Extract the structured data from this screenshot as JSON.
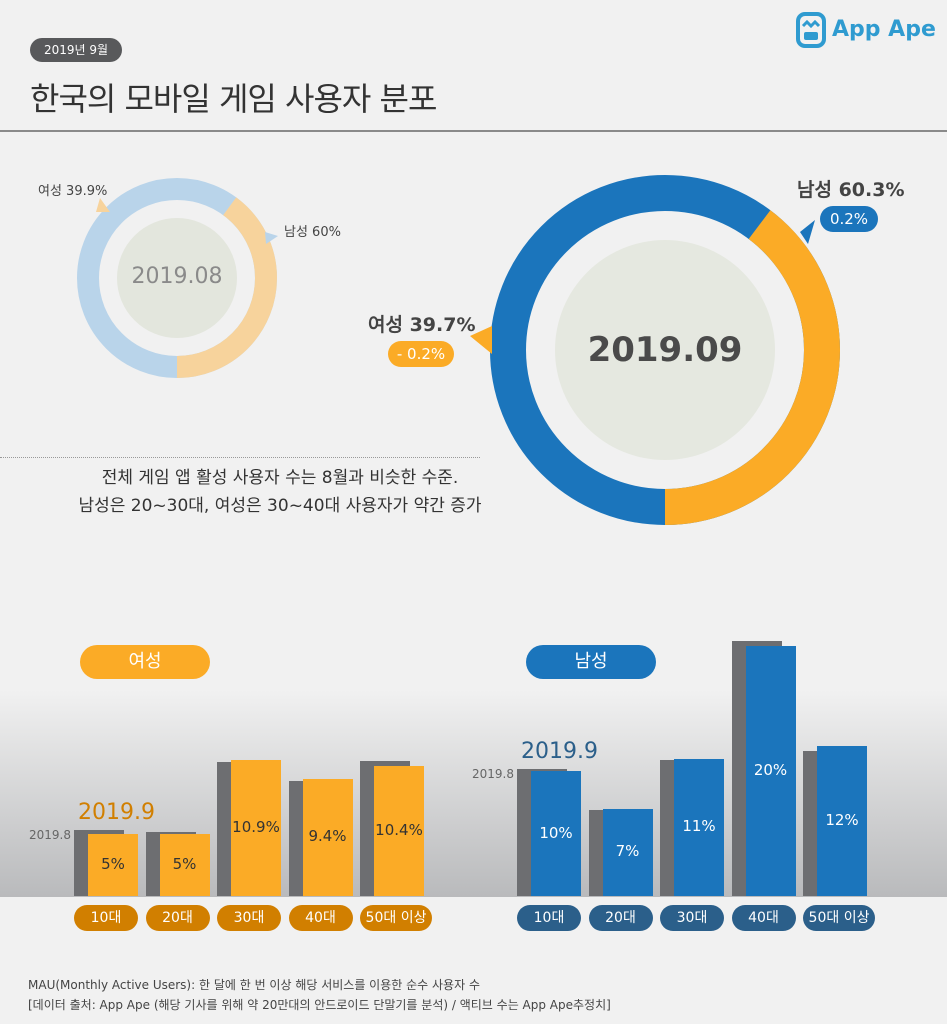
{
  "header": {
    "date_badge": "2019년 9월",
    "title": "한국의 모바일 게임 사용자 분포",
    "logo": "App Ape"
  },
  "description": [
    "전체 게임 앱 활성 사용자 수는 8월과 비슷한 수준.",
    "남성은 20~30대, 여성은 30~40대 사용자가 약간 증가"
  ],
  "footer": [
    "MAU(Monthly Active Users):  한 달에 한 번 이상 해당 서비스를 이용한 순수 사용자 수",
    "[데이터 출처: App Ape (해당 기사를 위해 약 20만대의 안드로이드 단말기를 분석) / 액티브 수는 App Ape추정치]"
  ],
  "colors": {
    "female": "#fbab26",
    "male": "#1b75bc",
    "female_light": "#f7d39c",
    "male_light": "#b9d4ea",
    "prev": "#6d6e71",
    "female_pill": "#d17f00",
    "male_pill": "#2b5f8a"
  },
  "chart_data": [
    {
      "type": "pie",
      "variant": "donut",
      "center_label": "2019.08",
      "slices": [
        {
          "name": "여성",
          "value": 39.9,
          "label": "여성 39.9%"
        },
        {
          "name": "남성",
          "value": 60,
          "label": "남성 60%"
        }
      ]
    },
    {
      "type": "pie",
      "variant": "donut",
      "center_label": "2019.09",
      "slices": [
        {
          "name": "여성",
          "value": 39.7,
          "label": "여성 39.7%",
          "change": "- 0.2%"
        },
        {
          "name": "남성",
          "value": 60.3,
          "label": "남성 60.3%",
          "change": "0.2%"
        }
      ]
    },
    {
      "type": "bar",
      "title": "여성",
      "categories": [
        "10대",
        "20대",
        "30대",
        "40대",
        "50대 이상"
      ],
      "series": [
        {
          "name": "2019.8",
          "values": [
            5.3,
            5.1,
            10.7,
            9.2,
            10.8
          ]
        },
        {
          "name": "2019.9",
          "values": [
            5,
            5,
            10.9,
            9.4,
            10.4
          ],
          "labels": [
            "5%",
            "5%",
            "10.9%",
            "9.4%",
            "10.4%"
          ]
        }
      ]
    },
    {
      "type": "bar",
      "title": "남성",
      "categories": [
        "10대",
        "20대",
        "30대",
        "40대",
        "50대 이상"
      ],
      "series": [
        {
          "name": "2019.8",
          "values": [
            10.2,
            6.9,
            10.9,
            20.4,
            11.6
          ]
        },
        {
          "name": "2019.9",
          "values": [
            10,
            7,
            11,
            20,
            12
          ],
          "labels": [
            "10%",
            "7%",
            "11%",
            "20%",
            "12%"
          ]
        }
      ]
    }
  ]
}
